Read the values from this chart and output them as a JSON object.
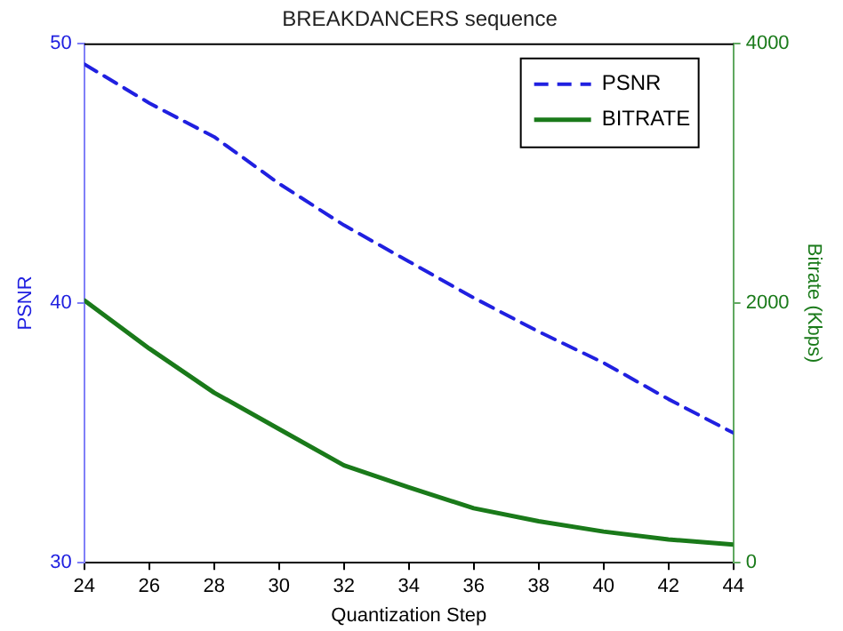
{
  "chart_data": {
    "type": "line",
    "title": "BREAKDANCERS sequence",
    "xlabel": "Quantization Step",
    "ylabel": "PSNR",
    "y2label": "Bitrate (Kbps)",
    "x": [
      24,
      26,
      28,
      30,
      32,
      34,
      36,
      38,
      40,
      42,
      44
    ],
    "series": [
      {
        "name": "PSNR",
        "color": "#2020e0",
        "line_style": "dashed",
        "values": [
          49.2,
          47.7,
          46.4,
          44.6,
          43.0,
          41.6,
          40.2,
          38.9,
          37.7,
          36.3,
          35.0
        ]
      },
      {
        "name": "BITRATE",
        "color": "#1a7a1a",
        "line_style": "solid",
        "axis": "y2",
        "values": [
          2020,
          1650,
          1310,
          1030,
          750,
          580,
          420,
          320,
          240,
          180,
          140
        ]
      }
    ],
    "xlim": [
      24,
      44
    ],
    "xticks": [
      24,
      26,
      28,
      30,
      32,
      34,
      36,
      38,
      40,
      42,
      44
    ],
    "ylim": [
      30,
      50
    ],
    "yticks": [
      30,
      40,
      50
    ],
    "y2lim": [
      0,
      4000
    ],
    "y2ticks": [
      0,
      2000,
      4000
    ],
    "legend": "top right",
    "marker": "none",
    "grid": false
  }
}
